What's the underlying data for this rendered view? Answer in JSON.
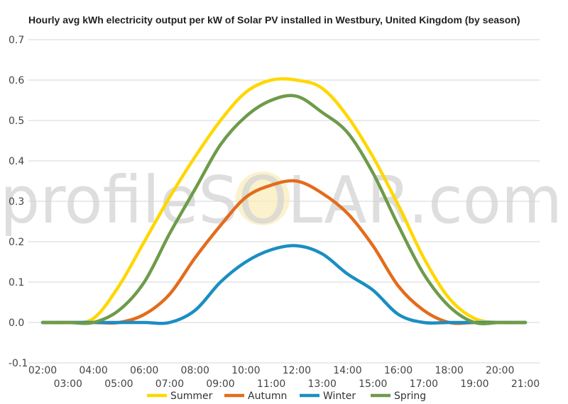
{
  "chart_data": {
    "type": "line",
    "title": "Hourly avg kWh electricity output per kW of Solar PV installed in Westbury, United Kingdom (by season)",
    "watermark": "profileSOLAR.com",
    "xlabel": "",
    "ylabel": "",
    "ylim": [
      -0.1,
      0.7
    ],
    "yticks": [
      "0.7",
      "0.6",
      "0.5",
      "0.4",
      "0.3",
      "0.2",
      "0.1",
      "0.0",
      "-0.1"
    ],
    "ytick_values": [
      0.7,
      0.6,
      0.5,
      0.4,
      0.3,
      0.2,
      0.1,
      0.0,
      -0.1
    ],
    "x": [
      "02:00",
      "03:00",
      "04:00",
      "05:00",
      "06:00",
      "07:00",
      "08:00",
      "09:00",
      "10:00",
      "11:00",
      "12:00",
      "13:00",
      "14:00",
      "15:00",
      "16:00",
      "17:00",
      "18:00",
      "19:00",
      "20:00",
      "21:00"
    ],
    "grid": true,
    "legend_position": "bottom",
    "series": [
      {
        "name": "Summer",
        "color": "#FFD700",
        "values": [
          0.0,
          0.0,
          0.01,
          0.09,
          0.2,
          0.31,
          0.41,
          0.5,
          0.57,
          0.6,
          0.6,
          0.58,
          0.51,
          0.41,
          0.29,
          0.16,
          0.06,
          0.01,
          0.0,
          0.0
        ]
      },
      {
        "name": "Autumn",
        "color": "#E36C1C",
        "values": [
          0.0,
          0.0,
          0.0,
          0.0,
          0.02,
          0.07,
          0.16,
          0.24,
          0.31,
          0.34,
          0.35,
          0.32,
          0.27,
          0.19,
          0.09,
          0.03,
          0.0,
          0.0,
          0.0,
          0.0
        ]
      },
      {
        "name": "Winter",
        "color": "#1B8EC2",
        "values": [
          0.0,
          0.0,
          0.0,
          0.0,
          0.0,
          0.0,
          0.03,
          0.1,
          0.15,
          0.18,
          0.19,
          0.17,
          0.12,
          0.08,
          0.02,
          0.0,
          0.0,
          0.0,
          0.0,
          0.0
        ]
      },
      {
        "name": "Spring",
        "color": "#6E9B4A",
        "values": [
          0.0,
          0.0,
          0.0,
          0.03,
          0.1,
          0.22,
          0.33,
          0.44,
          0.51,
          0.55,
          0.56,
          0.52,
          0.47,
          0.37,
          0.24,
          0.12,
          0.04,
          0.0,
          0.0,
          0.0
        ]
      }
    ]
  }
}
